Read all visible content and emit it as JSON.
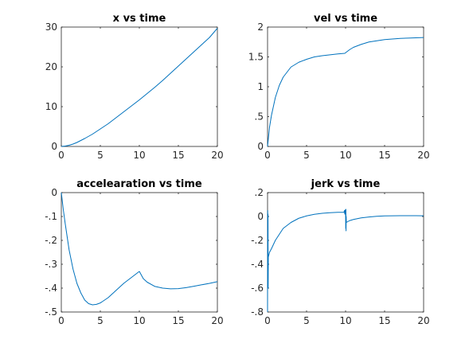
{
  "figure": {
    "background": "#ffffff",
    "line_color": "#0072bd",
    "axis_color": "#262626"
  },
  "chart_data": [
    {
      "type": "line",
      "title": "x vs time",
      "xlabel": "",
      "ylabel": "",
      "xlim": [
        0,
        20
      ],
      "ylim": [
        0,
        30
      ],
      "xticks": [
        0,
        5,
        10,
        15,
        20
      ],
      "yticks": [
        0,
        10,
        20,
        30
      ],
      "grid": false,
      "series": [
        {
          "x": [
            0,
            0.5,
            1,
            1.5,
            2,
            3,
            4,
            5,
            6,
            7,
            8,
            9,
            10,
            11,
            12,
            13,
            14,
            15,
            16,
            17,
            18,
            19,
            20
          ],
          "y": [
            0,
            0.1,
            0.3,
            0.6,
            1.0,
            2.0,
            3.1,
            4.4,
            5.7,
            7.2,
            8.7,
            10.2,
            11.7,
            13.3,
            14.9,
            16.6,
            18.4,
            20.2,
            22.0,
            23.8,
            25.6,
            27.4,
            29.7
          ]
        }
      ]
    },
    {
      "type": "line",
      "title": "vel vs time",
      "xlabel": "",
      "ylabel": "",
      "xlim": [
        0,
        20
      ],
      "ylim": [
        0,
        2
      ],
      "xticks": [
        0,
        5,
        10,
        15,
        20
      ],
      "yticks": [
        0,
        0.5,
        1,
        1.5,
        2
      ],
      "grid": false,
      "series": [
        {
          "x": [
            0,
            0.25,
            0.5,
            1,
            1.5,
            2,
            3,
            4,
            5,
            6,
            7,
            8,
            9,
            9.9,
            10,
            10.5,
            11,
            12,
            13,
            14,
            15,
            16,
            17,
            18,
            19,
            20
          ],
          "y": [
            0,
            0.32,
            0.52,
            0.82,
            1.02,
            1.16,
            1.33,
            1.41,
            1.46,
            1.5,
            1.52,
            1.535,
            1.55,
            1.56,
            1.57,
            1.62,
            1.66,
            1.71,
            1.75,
            1.77,
            1.79,
            1.8,
            1.81,
            1.815,
            1.82,
            1.825
          ]
        }
      ]
    },
    {
      "type": "line",
      "title": "accelearation vs time",
      "xlabel": "",
      "ylabel": "",
      "xlim": [
        0,
        20
      ],
      "ylim": [
        -0.5,
        0
      ],
      "xticks": [
        0,
        5,
        10,
        15,
        20
      ],
      "yticks": [
        -0.5,
        -0.4,
        -0.3,
        -0.2,
        -0.1,
        0
      ],
      "grid": false,
      "series": [
        {
          "x": [
            0,
            0.25,
            0.5,
            1,
            1.5,
            2,
            2.5,
            3,
            3.5,
            4,
            4.5,
            5,
            6,
            7,
            8,
            9,
            10,
            10.5,
            11,
            12,
            13,
            14,
            15,
            16,
            17,
            18,
            19,
            20
          ],
          "y": [
            0,
            -0.07,
            -0.13,
            -0.24,
            -0.32,
            -0.38,
            -0.42,
            -0.45,
            -0.465,
            -0.47,
            -0.468,
            -0.462,
            -0.44,
            -0.41,
            -0.38,
            -0.355,
            -0.33,
            -0.36,
            -0.375,
            -0.393,
            -0.4,
            -0.403,
            -0.402,
            -0.398,
            -0.392,
            -0.386,
            -0.38,
            -0.373
          ]
        }
      ]
    },
    {
      "type": "line",
      "title": "jerk vs time",
      "xlabel": "",
      "ylabel": "",
      "xlim": [
        0,
        20
      ],
      "ylim": [
        -0.8,
        0.2
      ],
      "xticks": [
        0,
        5,
        10,
        15,
        20
      ],
      "yticks": [
        -0.8,
        -0.6,
        -0.4,
        -0.2,
        0,
        0.2
      ],
      "grid": false,
      "series": [
        {
          "x": [
            0,
            0.02,
            0.04,
            0.06,
            0.08,
            0.1,
            0.25,
            0.5,
            1,
            1.5,
            2,
            3,
            4,
            5,
            6,
            7,
            8,
            9,
            9.8,
            9.85,
            9.9,
            9.95,
            10,
            10.02,
            10.04,
            10.06,
            10.08,
            10.1,
            10.5,
            11,
            12,
            13,
            14,
            15,
            16,
            17,
            18,
            19,
            20
          ],
          "y": [
            -0.8,
            0.05,
            -0.35,
            0.02,
            -0.6,
            -0.34,
            -0.3,
            -0.27,
            -0.2,
            -0.15,
            -0.1,
            -0.05,
            -0.015,
            0.005,
            0.018,
            0.027,
            0.032,
            0.035,
            0.035,
            0.05,
            0.02,
            0.055,
            0.035,
            -0.1,
            0.06,
            -0.12,
            0.0,
            -0.05,
            -0.035,
            -0.025,
            -0.012,
            -0.004,
            0.002,
            0.005,
            0.006,
            0.007,
            0.007,
            0.007,
            0.006
          ]
        }
      ]
    }
  ]
}
